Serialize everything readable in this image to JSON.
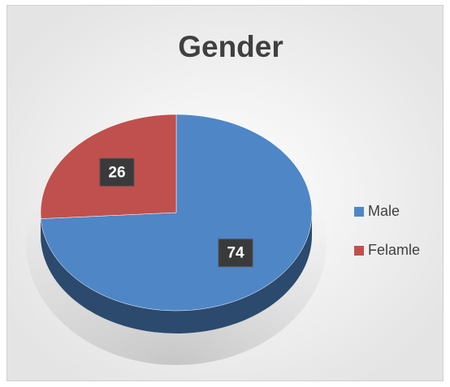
{
  "chart_data": {
    "type": "pie",
    "title": "Gender",
    "categories": [
      "Male",
      "Felamle"
    ],
    "values": [
      74,
      26
    ],
    "colors": [
      "#4f86c6",
      "#c0504d"
    ],
    "legend": "right"
  }
}
